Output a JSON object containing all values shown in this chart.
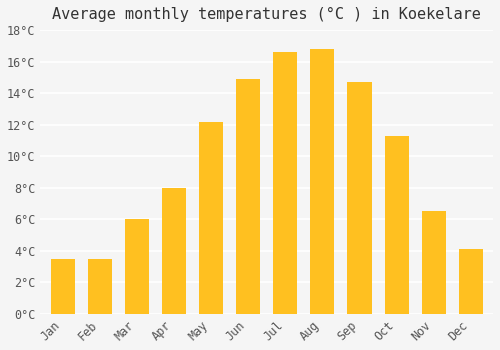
{
  "months": [
    "Jan",
    "Feb",
    "Mar",
    "Apr",
    "May",
    "Jun",
    "Jul",
    "Aug",
    "Sep",
    "Oct",
    "Nov",
    "Dec"
  ],
  "temperatures": [
    3.5,
    3.5,
    6.0,
    8.0,
    12.2,
    14.9,
    16.6,
    16.8,
    14.7,
    11.3,
    6.5,
    4.1
  ],
  "bar_color_top": "#FFC020",
  "bar_color_bottom": "#FFD060",
  "title": "Average monthly temperatures (°C ) in Koekelare",
  "ylim": [
    0,
    18
  ],
  "ytick_step": 2,
  "background_color": "#F5F5F5",
  "grid_color": "#FFFFFF",
  "title_fontsize": 11,
  "tick_fontsize": 8.5,
  "bar_edge_color": "none"
}
